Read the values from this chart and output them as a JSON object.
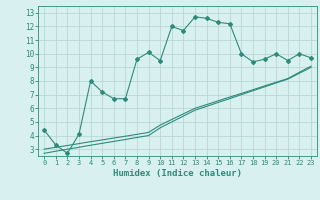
{
  "x": [
    0,
    1,
    2,
    3,
    4,
    5,
    6,
    7,
    8,
    9,
    10,
    11,
    12,
    13,
    14,
    15,
    16,
    17,
    18,
    19,
    20,
    21,
    22,
    23
  ],
  "y_main": [
    4.4,
    3.3,
    2.7,
    4.1,
    8.0,
    7.2,
    6.7,
    6.7,
    9.6,
    10.1,
    9.5,
    12.0,
    11.7,
    12.7,
    12.6,
    12.3,
    12.2,
    10.0,
    9.4,
    9.6,
    10.0,
    9.5,
    10.0,
    9.7
  ],
  "y_line1": [
    3.0,
    3.14,
    3.27,
    3.41,
    3.55,
    3.68,
    3.82,
    3.95,
    4.09,
    4.23,
    4.77,
    5.18,
    5.59,
    6.0,
    6.27,
    6.55,
    6.82,
    7.09,
    7.36,
    7.64,
    7.91,
    8.18,
    8.64,
    9.09
  ],
  "y_line2": [
    2.7,
    2.85,
    3.0,
    3.14,
    3.29,
    3.43,
    3.57,
    3.71,
    3.86,
    4.0,
    4.57,
    5.0,
    5.43,
    5.86,
    6.14,
    6.43,
    6.71,
    7.0,
    7.29,
    7.57,
    7.86,
    8.14,
    8.57,
    9.0
  ],
  "color": "#2e8b7a",
  "bg_color": "#d8f0f0",
  "grid_color": "#b8d8d8",
  "xlabel": "Humidex (Indice chaleur)",
  "xlim": [
    -0.5,
    23.5
  ],
  "ylim": [
    2.5,
    13.5
  ],
  "yticks": [
    3,
    4,
    5,
    6,
    7,
    8,
    9,
    10,
    11,
    12,
    13
  ],
  "xticks": [
    0,
    1,
    2,
    3,
    4,
    5,
    6,
    7,
    8,
    9,
    10,
    11,
    12,
    13,
    14,
    15,
    16,
    17,
    18,
    19,
    20,
    21,
    22,
    23
  ]
}
